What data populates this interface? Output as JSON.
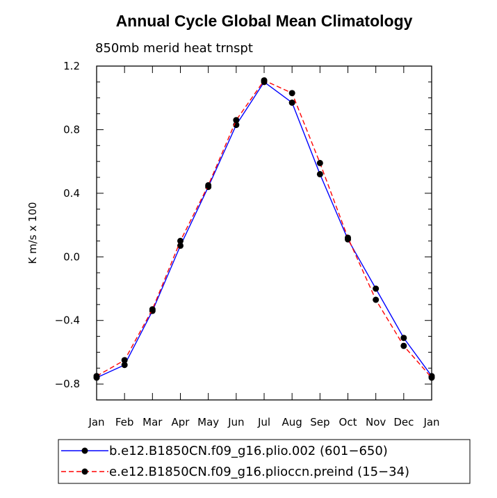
{
  "chart_data": {
    "type": "line",
    "title": "Annual Cycle Global Mean Climatology",
    "subtitle": "850mb merid heat trnspt",
    "xlabel": "",
    "ylabel": "K m/s x 100",
    "categories": [
      "Jan",
      "Feb",
      "Mar",
      "Apr",
      "May",
      "Jun",
      "Jul",
      "Aug",
      "Sep",
      "Oct",
      "Nov",
      "Dec",
      "Jan"
    ],
    "ylim": [
      -0.9,
      1.2
    ],
    "yticks": [
      -0.8,
      -0.4,
      0.0,
      0.4,
      0.8,
      1.2
    ],
    "ytick_labels": [
      "−0.8",
      "−0.4",
      "0.0",
      "0.4",
      "0.8",
      "1.2"
    ],
    "series": [
      {
        "name": "b.e12.B1850CN.f09_g16.plio.002 (601−650)",
        "color": "#0000ff",
        "style": "solid",
        "values": [
          -0.76,
          -0.68,
          -0.34,
          0.07,
          0.44,
          0.83,
          1.1,
          0.97,
          0.52,
          0.11,
          -0.2,
          -0.51,
          -0.75
        ]
      },
      {
        "name": "e.e12.B1850CN.f09_g16.plioccn.preind (15−34)",
        "color": "#ff0000",
        "style": "dashed",
        "values": [
          -0.75,
          -0.65,
          -0.33,
          0.1,
          0.45,
          0.86,
          1.11,
          1.03,
          0.59,
          0.12,
          -0.27,
          -0.56,
          -0.76
        ]
      }
    ],
    "legend_position": "bottom"
  }
}
